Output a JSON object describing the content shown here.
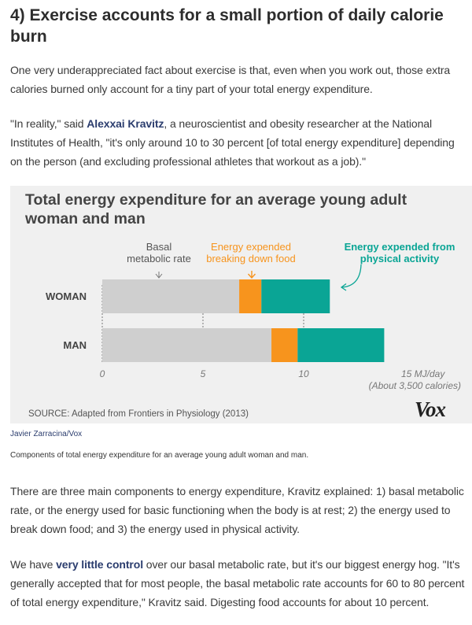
{
  "heading": "4) Exercise accounts for a small portion of daily calorie burn",
  "para1": "One very underappreciated fact about exercise is that, even when you work out, those extra calories burned only account for a tiny part of your total energy expenditure.",
  "para2": {
    "before": "\"In reality,\" said ",
    "link": "Alexxai Kravitz",
    "after": ", a neuroscientist and obesity researcher at the National Institutes of Health, \"it's only around 10 to 30 percent [of total energy expenditure] depending on the person (and excluding professional athletes that workout as a job).\""
  },
  "figure": {
    "title": "Total energy expenditure for an average young adult woman and man",
    "source": "SOURCE: Adapted from Frontiers in Physiology (2013)",
    "logo": "Vox",
    "credit": "Javier Zarracina/Vox",
    "caption": "Components of total energy expenditure for an average young adult woman and man."
  },
  "colors": {
    "basal": "#cfcfcf",
    "food": "#f7941d",
    "activity": "#0aa595",
    "panel": "#f0f0f0",
    "link": "#2b3d6e"
  },
  "chart_data": {
    "type": "bar",
    "stacked": true,
    "orientation": "horizontal",
    "categories": [
      "WOMAN",
      "MAN"
    ],
    "series": [
      {
        "name": "Basal metabolic rate",
        "color": "#cfcfcf",
        "values": [
          6.8,
          8.4
        ]
      },
      {
        "name": "Energy expended breaking down food",
        "color": "#f7941d",
        "values": [
          1.1,
          1.3
        ]
      },
      {
        "name": "Energy expended from physical activity",
        "color": "#0aa595",
        "values": [
          3.4,
          4.3
        ]
      }
    ],
    "legend_lines": [
      [
        "Basal",
        "metabolic rate"
      ],
      [
        "Energy expended",
        "breaking down food"
      ],
      [
        "Energy expended from",
        "physical activity"
      ]
    ],
    "xticks": [
      "0",
      "5",
      "10"
    ],
    "xtick_values": [
      0,
      5,
      10
    ],
    "xlim": [
      0,
      15
    ],
    "xlabel": "15 MJ/day",
    "xlabel_sub": "(About 3,500 calories)",
    "grid": true
  },
  "para3": "There are three main components to energy expenditure, Kravitz explained: 1) basal metabolic rate, or the energy used for basic functioning when the body is at rest; 2) the energy used to break down food; and 3) the energy used in physical activity.",
  "para4": {
    "before": "We have ",
    "bold": "very little control",
    "after": " over our basal metabolic rate, but it's our biggest energy hog. \"It's generally accepted that for most people, the basal metabolic rate accounts for 60 to 80 percent of total energy expenditure,\" Kravitz said. Digesting food accounts for about 10 percent."
  }
}
